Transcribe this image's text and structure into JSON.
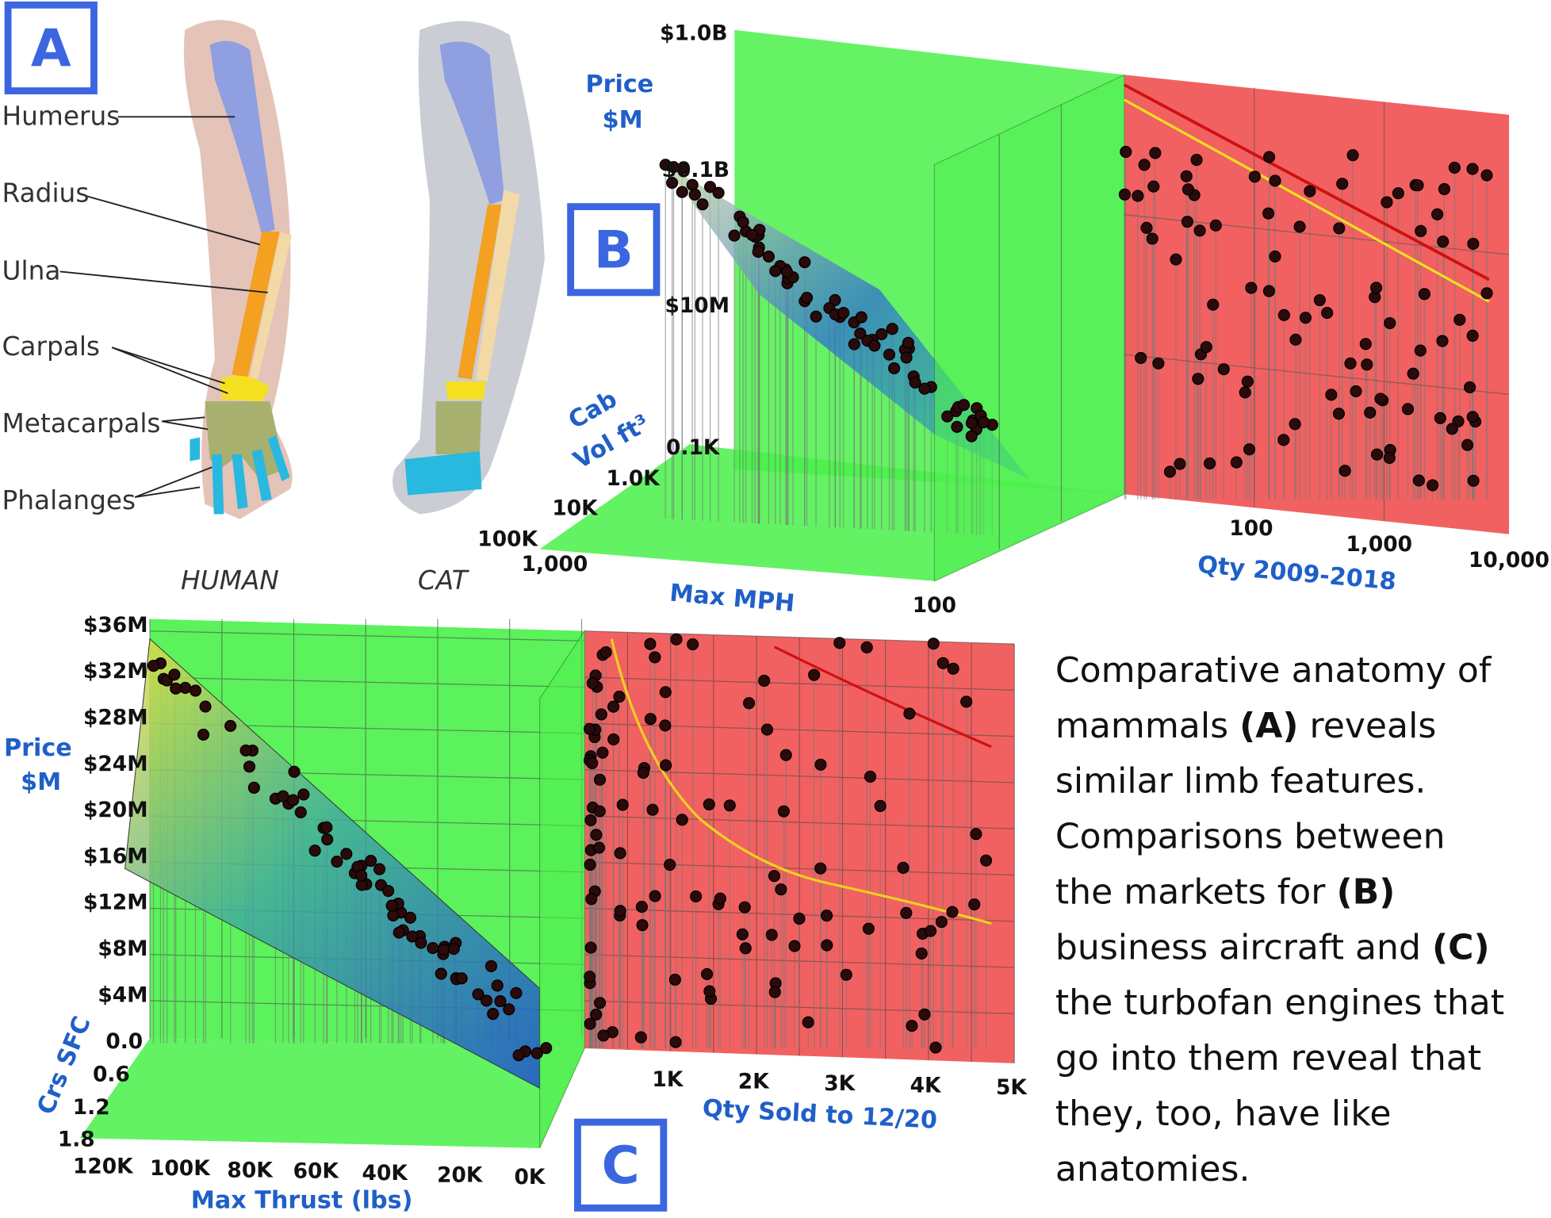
{
  "panel_labels": {
    "a": "A",
    "b": "B",
    "c": "C"
  },
  "anatomy": {
    "labels": [
      "Humerus",
      "Radius",
      "Ulna",
      "Carpals",
      "Metacarpals",
      "Phalanges"
    ],
    "species": [
      "HUMAN",
      "CAT"
    ]
  },
  "chart_b": {
    "y_title": [
      "Price",
      "$M"
    ],
    "y_ticks": [
      "$1.0B",
      "$0.1B",
      "$10M"
    ],
    "z_title": [
      "Cab",
      "Vol ft³"
    ],
    "z_ticks": [
      "0.1K",
      "1.0K",
      "10K",
      "100K"
    ],
    "x_title": "Max MPH",
    "x_ticks": [
      "1,000",
      "100"
    ],
    "qty_title": "Qty 2009-2018",
    "qty_ticks": [
      "100",
      "1,000",
      "10,000"
    ]
  },
  "chart_c": {
    "y_title": [
      "Price",
      "$M"
    ],
    "y_ticks": [
      "$36M",
      "$32M",
      "$28M",
      "$24M",
      "$20M",
      "$16M",
      "$12M",
      "$8M",
      "$4M"
    ],
    "z_title": "Crs SFC",
    "z_ticks": [
      "0.0",
      "0.6",
      "1.2",
      "1.8"
    ],
    "x_title": "Max Thrust (lbs)",
    "x_ticks": [
      "120K",
      "100K",
      "80K",
      "60K",
      "40K",
      "20K",
      "0K"
    ],
    "qty_title": "Qty Sold to 12/20",
    "qty_ticks": [
      "1K",
      "2K",
      "3K",
      "4K",
      "5K"
    ]
  },
  "caption": {
    "lines": [
      [
        {
          "t": "Comparative anatomy of"
        }
      ],
      [
        {
          "t": "mammals "
        },
        {
          "b": "(A)"
        },
        {
          "t": " reveals"
        }
      ],
      [
        {
          "t": "similar limb features."
        }
      ],
      [
        {
          "t": "Comparisons between"
        }
      ],
      [
        {
          "t": "the markets for "
        },
        {
          "b": "(B)"
        }
      ],
      [
        {
          "t": "business aircraft and "
        },
        {
          "b": "(C)"
        }
      ],
      [
        {
          "t": "the turbofan engines that"
        }
      ],
      [
        {
          "t": "go into them reveal that"
        }
      ],
      [
        {
          "t": "they, too, have like"
        }
      ],
      [
        {
          "t": "anatomies."
        }
      ]
    ]
  }
}
